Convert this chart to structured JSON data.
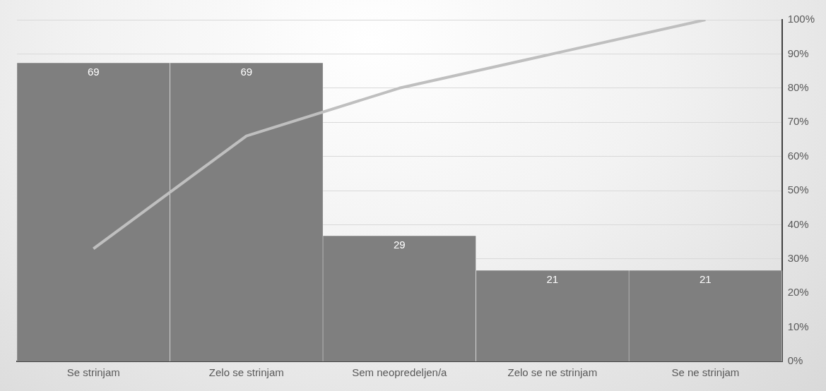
{
  "chart_data": {
    "type": "bar",
    "categories": [
      "Se strinjam",
      "Zelo se strinjam",
      "Sem neopredeljen/a",
      "Zelo se ne strinjam",
      "Se ne strinjam"
    ],
    "series": [
      {
        "color": "#7f7f7f",
        "values": [
          69,
          69,
          29,
          21,
          21
        ],
        "value_labels": [
          "69",
          "69",
          "29",
          "21",
          "21"
        ]
      },
      {
        "type": "line",
        "axis": "y2",
        "color": "#bfbfbf",
        "values": [
          33,
          66,
          80,
          90,
          100
        ]
      }
    ],
    "ylim": [
      0,
      79
    ],
    "y2lim": [
      0,
      100
    ],
    "y2ticks": [
      {
        "value": 0,
        "label": "0%"
      },
      {
        "value": 10,
        "label": "10%"
      },
      {
        "value": 20,
        "label": "20%"
      },
      {
        "value": 30,
        "label": "30%"
      },
      {
        "value": 40,
        "label": "40%"
      },
      {
        "value": 50,
        "label": "50%"
      },
      {
        "value": 60,
        "label": "60%"
      },
      {
        "value": 70,
        "label": "70%"
      },
      {
        "value": 80,
        "label": "80%"
      },
      {
        "value": 90,
        "label": "90%"
      },
      {
        "value": 100,
        "label": "100%"
      }
    ],
    "grid": "y",
    "legend": false,
    "marker": "none",
    "line_style": "solid"
  }
}
